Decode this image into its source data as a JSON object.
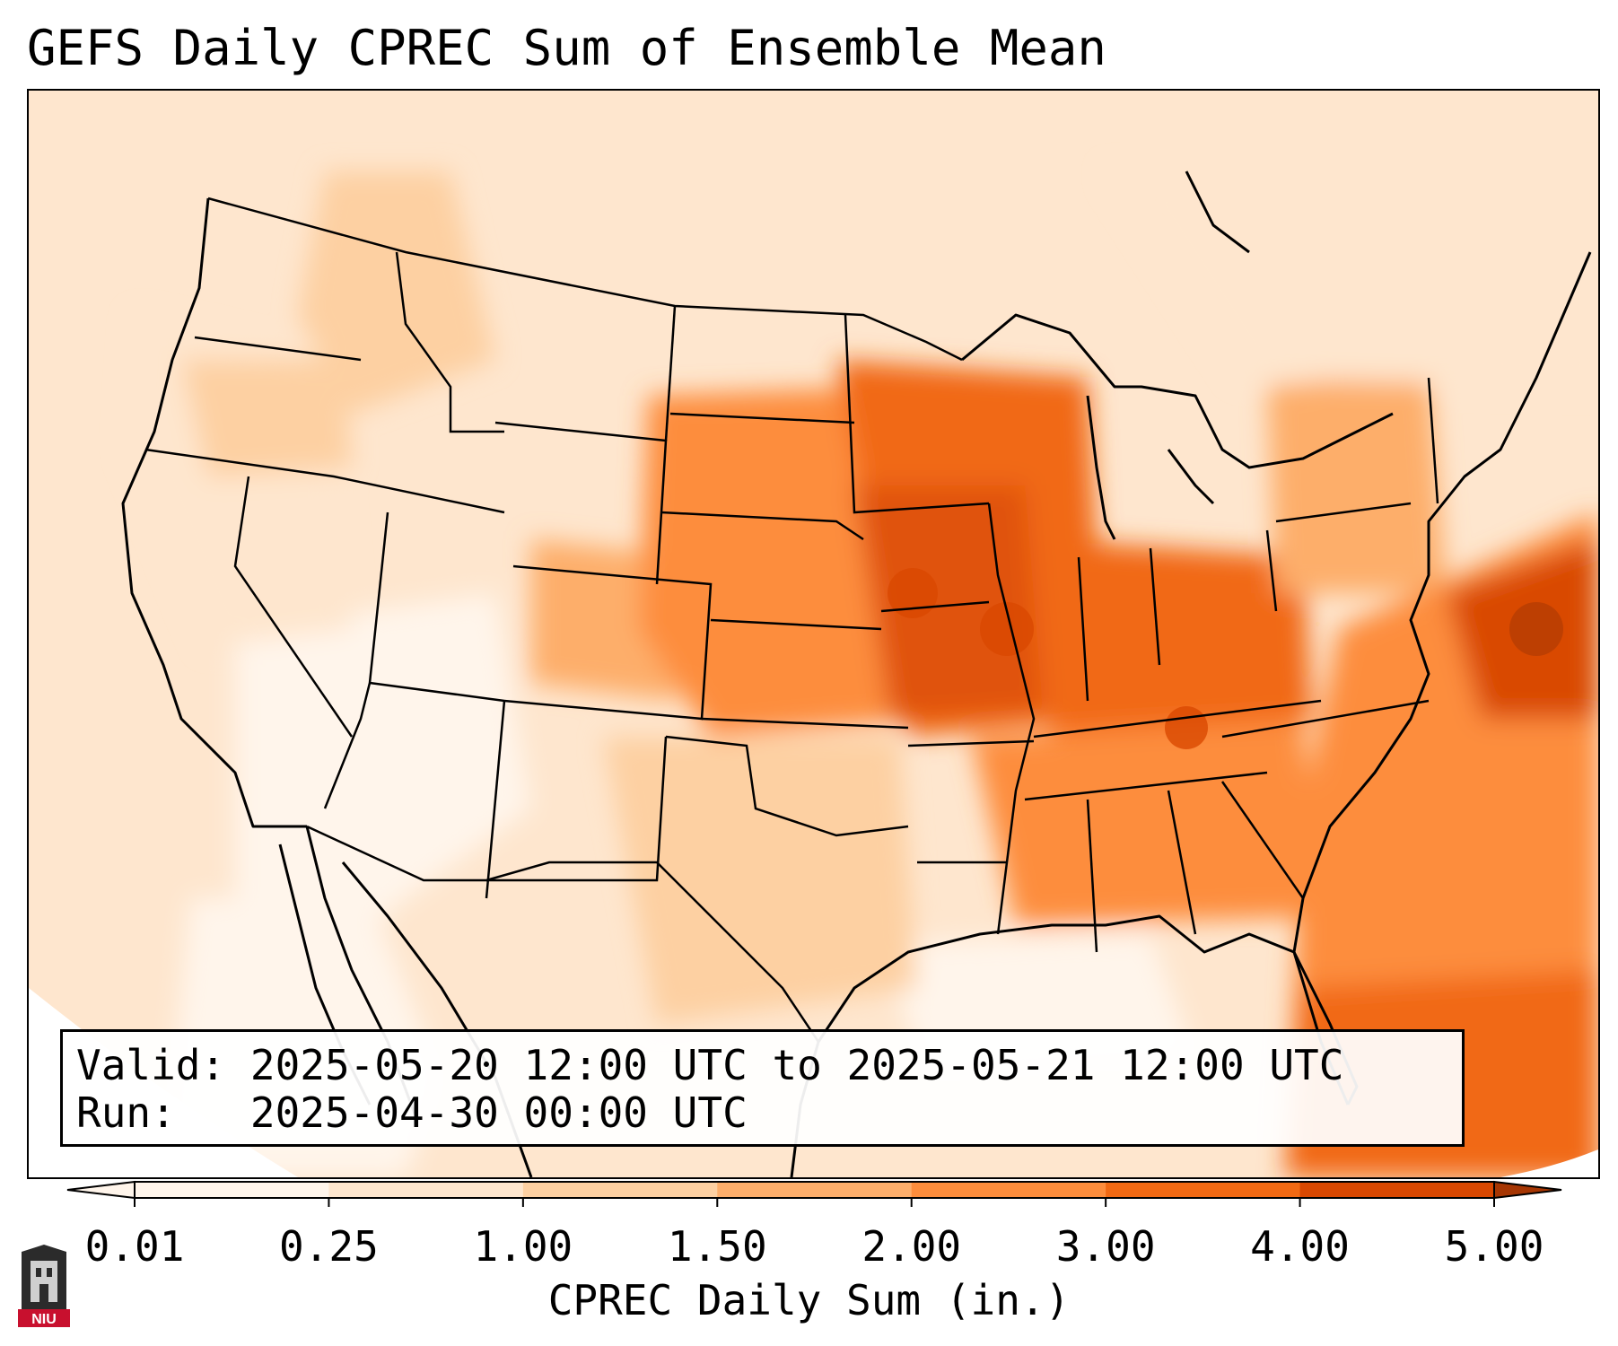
{
  "title": "GEFS Daily CPREC Sum of Ensemble Mean",
  "info": {
    "valid_label": "Valid:",
    "valid_value": "2025-05-20 12:00 UTC to 2025-05-21 12:00 UTC",
    "run_label": "Run:",
    "run_value": "2025-04-30 00:00 UTC"
  },
  "colorbar": {
    "label": "CPREC Daily Sum (in.)",
    "ticks": [
      "0.01",
      "0.25",
      "1.00",
      "1.50",
      "2.00",
      "3.00",
      "4.00",
      "5.00"
    ],
    "colors": [
      "#fff5eb",
      "#fee6ce",
      "#fdd0a2",
      "#fdae6b",
      "#fd8d3c",
      "#f16913",
      "#d94801",
      "#a63603"
    ]
  },
  "logo": {
    "text": "NIU",
    "name": "niu-logo"
  },
  "map": {
    "variable": "CPREC Daily Sum",
    "units": "in.",
    "region": "Contiguous United States"
  }
}
